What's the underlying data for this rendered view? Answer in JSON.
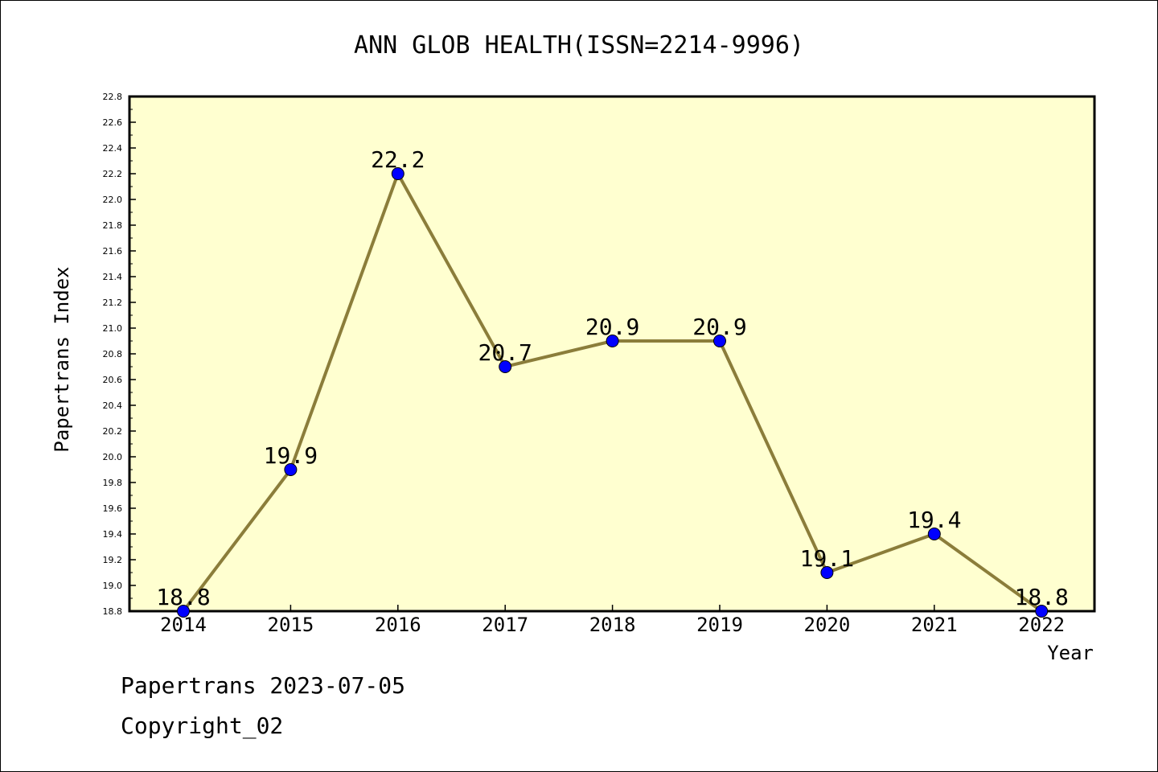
{
  "chart_data": {
    "type": "line",
    "title": "ANN GLOB HEALTH(ISSN=2214-9996)",
    "xlabel": "Year",
    "ylabel": "Papertrans Index",
    "categories": [
      "2014",
      "2015",
      "2016",
      "2017",
      "2018",
      "2019",
      "2020",
      "2021",
      "2022"
    ],
    "series": [
      {
        "values": [
          18.8,
          19.9,
          22.2,
          20.7,
          20.9,
          20.9,
          19.1,
          19.4,
          18.8
        ],
        "data_labels": [
          "18.8",
          "19.9",
          "22.2",
          "20.7",
          "20.9",
          "20.9",
          "19.1",
          "19.4",
          "18.8"
        ]
      }
    ],
    "ylim": [
      18.8,
      22.8
    ],
    "yticks": [
      "18.8",
      "19.0",
      "19.2",
      "19.4",
      "19.6",
      "19.8",
      "20.0",
      "20.2",
      "20.4",
      "20.6",
      "20.8",
      "21.0",
      "21.2",
      "21.4",
      "21.6",
      "21.8",
      "22.0",
      "22.2",
      "22.4",
      "22.6",
      "22.8"
    ],
    "grid": false,
    "colors": {
      "plot_background": "#ffffd0",
      "line": "#8b7d3a",
      "marker": "#0000ff"
    }
  },
  "footer": {
    "source": "Papertrans 2023-07-05",
    "copyright": "Copyright_02"
  }
}
